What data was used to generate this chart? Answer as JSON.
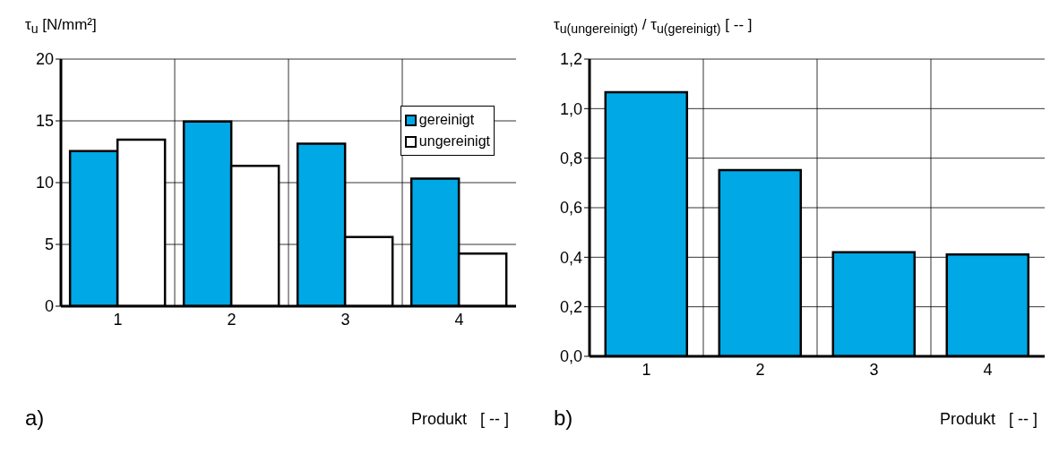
{
  "chart_data": [
    {
      "type": "bar",
      "ylabel": "τ$_{u}$  [N/mm²]",
      "xlabel": "Produkt   [ -- ]",
      "annotations": [
        "a)"
      ],
      "categories": [
        "1",
        "2",
        "3",
        "4"
      ],
      "series": [
        {
          "name": "gereinigt",
          "color": "#00a8e6",
          "values": [
            12.55,
            14.94,
            13.15,
            10.33
          ]
        },
        {
          "name": "ungereinigt",
          "color": "#ffffff",
          "values": [
            13.47,
            11.36,
            5.6,
            4.25
          ]
        }
      ],
      "ylim": [
        0,
        20
      ],
      "yticks": [
        0,
        5,
        10,
        15,
        20
      ],
      "grid": true,
      "legend": "top right"
    },
    {
      "type": "bar",
      "ylabel": "τ$_{u(ungereinigt)}$ / τ$_{u(gereinigt)}$ [ -- ]",
      "xlabel": "Produkt   [ -- ]",
      "annotations": [
        "b)"
      ],
      "categories": [
        "1",
        "2",
        "3",
        "4"
      ],
      "values": [
        1.066,
        0.752,
        0.42,
        0.411
      ],
      "color": "#00a8e6",
      "ylim": [
        0,
        1.2
      ],
      "yticks": [
        {
          "value": 0,
          "label": "0,0"
        },
        {
          "value": 0.2,
          "label": "0,2"
        },
        {
          "value": 0.4,
          "label": "0,4"
        },
        {
          "value": 0.6,
          "label": "0,6"
        },
        {
          "value": 0.8,
          "label": "0,8"
        },
        {
          "value": 1,
          "label": "1,0"
        },
        {
          "value": 1.2,
          "label": "1,2"
        }
      ],
      "grid": true
    }
  ]
}
